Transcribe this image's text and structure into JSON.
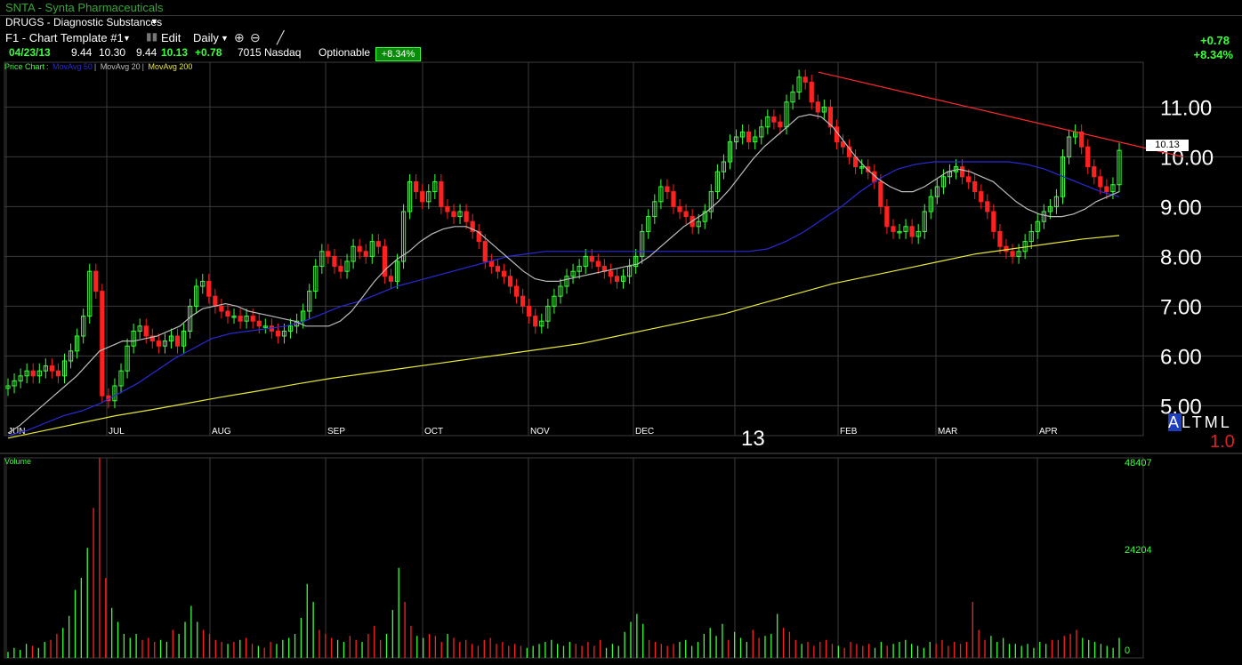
{
  "window": {
    "title": "SNTA - Synta Pharmaceuticals",
    "sector": "DRUGS - Diagnostic Substances"
  },
  "toolbar": {
    "template": "F1 - Chart Template #1",
    "edit": "Edit",
    "interval": "Daily",
    "zoom_in_icon": "zoom-in-icon",
    "zoom_out_icon": "zoom-out-icon",
    "draw_icon": "pencil-icon"
  },
  "quote": {
    "date": "04/23/13",
    "open": "9.44",
    "high": "10.30",
    "low": "9.44",
    "close": "10.13",
    "change": "+0.78",
    "volume": "7015",
    "exchange": "Nasdaq",
    "optionable": "Optionable",
    "pct_change": "+8.34%"
  },
  "header_right": {
    "change": "+0.78",
    "pct": "+8.34%"
  },
  "legend": {
    "price": "Price Chart",
    "ma50": "MovAvg 50",
    "ma20": "MovAvg 20",
    "ma200": "MovAvg 200"
  },
  "colors": {
    "up": "#3cff3c",
    "down": "#ff2020",
    "ma50": "#2a2ad8",
    "ma20": "#bdbdbd",
    "ma200": "#e8e83a",
    "trendline": "#ff2a2a",
    "grid": "#3b3b3b"
  },
  "volume_label": "Volume",
  "last_price_tag": "10.13",
  "scale_buttons": [
    "A",
    "L",
    "T",
    "M",
    "L"
  ],
  "scale_value": "1.0",
  "year_marker": "13",
  "chart_data": [
    {
      "type": "candlestick",
      "title": "SNTA - Synta Pharmaceuticals",
      "x_ticks": [
        "JUN",
        "JUL",
        "AUG",
        "SEP",
        "OCT",
        "NOV",
        "DEC",
        "FEB",
        "MAR",
        "APR"
      ],
      "y_ticks": [
        "5.00",
        "6.00",
        "7.00",
        "8.00",
        "9.00",
        "10.00",
        "11.00"
      ],
      "ylim": [
        4.4,
        11.9
      ],
      "closes": [
        5.4,
        5.5,
        5.6,
        5.7,
        5.6,
        5.7,
        5.8,
        5.7,
        5.6,
        5.9,
        6.1,
        6.4,
        6.8,
        7.7,
        7.3,
        5.2,
        5.1,
        5.4,
        5.7,
        6.2,
        6.5,
        6.6,
        6.4,
        6.3,
        6.2,
        6.3,
        6.4,
        6.2,
        6.5,
        7.0,
        7.4,
        7.5,
        7.2,
        7.0,
        6.9,
        6.8,
        6.8,
        6.7,
        6.8,
        6.7,
        6.6,
        6.6,
        6.5,
        6.4,
        6.5,
        6.6,
        6.7,
        6.9,
        7.3,
        7.8,
        8.1,
        8.0,
        7.8,
        7.7,
        7.9,
        8.2,
        8.1,
        8.0,
        8.3,
        8.2,
        7.6,
        7.5,
        7.9,
        8.9,
        9.5,
        9.3,
        9.1,
        9.3,
        9.5,
        9.0,
        8.9,
        8.8,
        8.9,
        8.7,
        8.5,
        8.3,
        7.9,
        7.8,
        7.7,
        7.6,
        7.4,
        7.2,
        7.0,
        6.8,
        6.6,
        6.7,
        7.0,
        7.2,
        7.4,
        7.6,
        7.7,
        7.8,
        8.0,
        7.9,
        7.8,
        7.7,
        7.6,
        7.5,
        7.6,
        7.8,
        8.0,
        8.5,
        8.8,
        9.1,
        9.4,
        9.3,
        9.0,
        8.9,
        8.8,
        8.6,
        8.7,
        8.9,
        9.3,
        9.7,
        9.9,
        10.3,
        10.4,
        10.5,
        10.3,
        10.4,
        10.6,
        10.8,
        10.7,
        10.6,
        11.1,
        11.3,
        11.6,
        11.5,
        11.1,
        10.9,
        11.0,
        10.6,
        10.3,
        10.2,
        10.0,
        9.8,
        9.8,
        9.7,
        9.5,
        9.0,
        8.6,
        8.5,
        8.5,
        8.6,
        8.4,
        8.5,
        8.9,
        9.2,
        9.4,
        9.6,
        9.7,
        9.8,
        9.6,
        9.5,
        9.3,
        9.1,
        8.9,
        8.5,
        8.2,
        8.1,
        8.0,
        8.1,
        8.3,
        8.5,
        8.7,
        8.9,
        9.0,
        9.2,
        10.0,
        10.4,
        10.5,
        10.2,
        9.8,
        9.6,
        9.4,
        9.3,
        9.44,
        10.13
      ],
      "ma20": [
        4.45,
        4.6,
        4.8,
        5.0,
        5.2,
        5.4,
        5.6,
        5.85,
        6.1,
        6.2,
        6.3,
        6.3,
        6.35,
        6.4,
        6.5,
        6.6,
        6.8,
        6.95,
        7.0,
        7.05,
        7.0,
        6.9,
        6.85,
        6.8,
        6.75,
        6.7,
        6.6,
        6.6,
        6.6,
        6.7,
        6.9,
        7.2,
        7.5,
        7.75,
        7.95,
        8.1,
        8.3,
        8.45,
        8.55,
        8.6,
        8.6,
        8.5,
        8.3,
        8.1,
        7.9,
        7.7,
        7.55,
        7.5,
        7.5,
        7.55,
        7.6,
        7.65,
        7.7,
        7.75,
        7.8,
        7.85,
        8.0,
        8.2,
        8.4,
        8.6,
        8.75,
        8.9,
        9.1,
        9.35,
        9.65,
        9.95,
        10.2,
        10.4,
        10.6,
        10.8,
        10.85,
        10.8,
        10.6,
        10.3,
        10.0,
        9.75,
        9.55,
        9.4,
        9.3,
        9.3,
        9.4,
        9.55,
        9.7,
        9.75,
        9.7,
        9.6,
        9.5,
        9.3,
        9.1,
        8.95,
        8.85,
        8.8,
        8.8,
        8.85,
        8.95,
        9.1,
        9.2,
        9.3
      ],
      "ma50": [
        4.4,
        4.5,
        4.65,
        4.8,
        4.9,
        5.05,
        5.25,
        5.45,
        5.7,
        5.95,
        6.15,
        6.35,
        6.45,
        6.5,
        6.55,
        6.6,
        6.7,
        6.85,
        7.0,
        7.1,
        7.25,
        7.4,
        7.5,
        7.6,
        7.7,
        7.8,
        7.9,
        8.0,
        8.05,
        8.1,
        8.1,
        8.1,
        8.1,
        8.1,
        8.1,
        8.1,
        8.1,
        8.1,
        8.1,
        8.1,
        8.1,
        8.15,
        8.3,
        8.5,
        8.75,
        9.0,
        9.3,
        9.55,
        9.75,
        9.85,
        9.9,
        9.9,
        9.9,
        9.9,
        9.9,
        9.85,
        9.75,
        9.6,
        9.45,
        9.3,
        9.2
      ],
      "ma200": [
        4.35,
        4.5,
        4.65,
        4.8,
        4.92,
        5.05,
        5.18,
        5.3,
        5.43,
        5.55,
        5.65,
        5.75,
        5.85,
        5.95,
        6.05,
        6.15,
        6.25,
        6.4,
        6.55,
        6.7,
        6.85,
        7.05,
        7.25,
        7.45,
        7.6,
        7.75,
        7.9,
        8.05,
        8.15,
        8.25,
        8.35,
        8.42
      ],
      "trendline": [
        11.7,
        10.0
      ],
      "volume_ticks": [
        "48407",
        "24204",
        "0"
      ],
      "volume": [
        3,
        5,
        4,
        7,
        6,
        5,
        8,
        9,
        12,
        15,
        21,
        34,
        40,
        55,
        75,
        100,
        40,
        25,
        18,
        12,
        10,
        12,
        9,
        10,
        8,
        9,
        8,
        14,
        12,
        18,
        26,
        18,
        14,
        12,
        9,
        8,
        7,
        8,
        9,
        10,
        7,
        6,
        5,
        8,
        7,
        9,
        10,
        12,
        20,
        37,
        28,
        14,
        12,
        10,
        9,
        8,
        11,
        9,
        8,
        12,
        16,
        9,
        12,
        24,
        45,
        28,
        16,
        11,
        10,
        12,
        11,
        8,
        12,
        10,
        8,
        9,
        7,
        6,
        9,
        10,
        7,
        8,
        6,
        7,
        6,
        5,
        6,
        7,
        8,
        9,
        7,
        6,
        8,
        7,
        6,
        8,
        6,
        9,
        5,
        7,
        6,
        13,
        18,
        22,
        17,
        9,
        8,
        7,
        6,
        7,
        8,
        9,
        6,
        8,
        12,
        15,
        11,
        17,
        9,
        13,
        10,
        8,
        14,
        10,
        11,
        12,
        22,
        15,
        13,
        9,
        7,
        8,
        6,
        8,
        9,
        7,
        6,
        5,
        8,
        7,
        6,
        7,
        5,
        8,
        6,
        7,
        8,
        9,
        7,
        6,
        5,
        8,
        7,
        9,
        6,
        8,
        7,
        8,
        28,
        14,
        9,
        11,
        8,
        10,
        7,
        7,
        6,
        7,
        5,
        8,
        7,
        9,
        9,
        11,
        12,
        14,
        10,
        9,
        8,
        7,
        6,
        5,
        10
      ]
    }
  ]
}
